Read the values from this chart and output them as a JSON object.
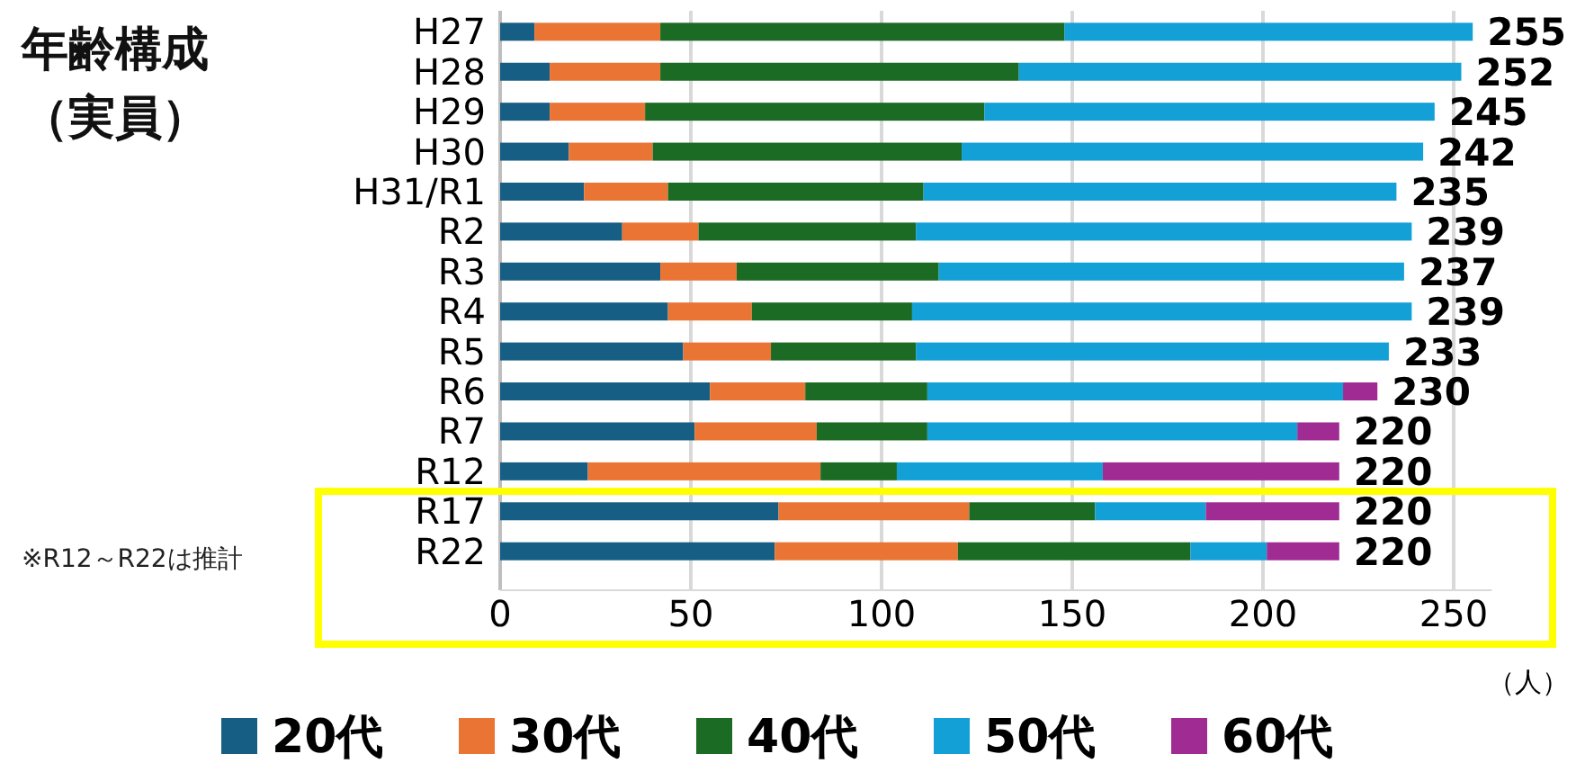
{
  "chart_data": {
    "type": "bar",
    "orientation": "horizontal",
    "stacked": true,
    "title": "年齢構成",
    "subtitle": "（実員）",
    "xlabel": "（人）",
    "categories": [
      "H27",
      "H28",
      "H29",
      "H30",
      "H31/R1",
      "R2",
      "R3",
      "R4",
      "R5",
      "R6",
      "R7",
      "R12",
      "R17",
      "R22"
    ],
    "series": [
      {
        "name": "20代",
        "color": "#175e84",
        "values": [
          9,
          13,
          13,
          18,
          22,
          32,
          42,
          44,
          48,
          55,
          51,
          23,
          73,
          72
        ]
      },
      {
        "name": "30代",
        "color": "#ea7434",
        "values": [
          33,
          29,
          25,
          22,
          22,
          20,
          20,
          22,
          23,
          25,
          32,
          61,
          50,
          48
        ]
      },
      {
        "name": "40代",
        "color": "#1b6b24",
        "values": [
          106,
          94,
          89,
          81,
          67,
          57,
          53,
          42,
          38,
          32,
          29,
          20,
          33,
          61
        ]
      },
      {
        "name": "50代",
        "color": "#12a0d7",
        "values": [
          107,
          116,
          118,
          121,
          124,
          130,
          122,
          131,
          124,
          109,
          97,
          54,
          29,
          20
        ]
      },
      {
        "name": "60代",
        "color": "#a02b93",
        "values": [
          0,
          0,
          0,
          0,
          0,
          0,
          0,
          0,
          0,
          9,
          11,
          62,
          35,
          19
        ]
      }
    ],
    "totals": [
      "255",
      "252",
      "245",
      "242",
      "235",
      "239",
      "237",
      "239",
      "233",
      "230",
      "220",
      "220",
      "220",
      "220"
    ],
    "xlim": [
      0,
      260
    ],
    "xticks": [
      0,
      50,
      100,
      150,
      200,
      250
    ],
    "grid": "x",
    "legend": "bottom",
    "annotations": [
      "※R12～R22は推計"
    ]
  }
}
